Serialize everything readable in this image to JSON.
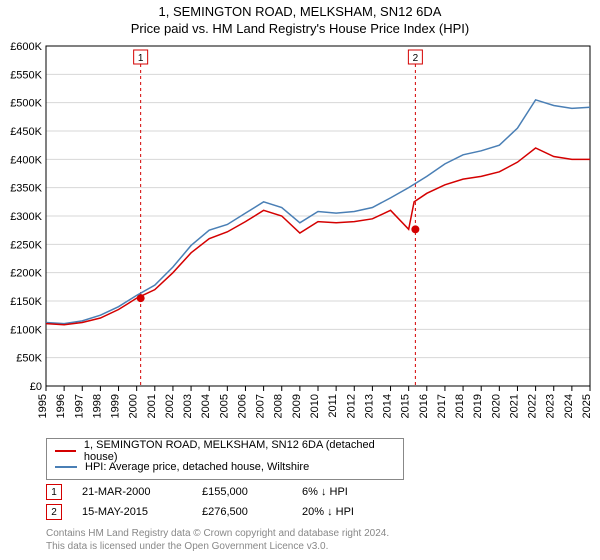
{
  "title_line1": "1, SEMINGTON ROAD, MELKSHAM, SN12 6DA",
  "title_line2": "Price paid vs. HM Land Registry's House Price Index (HPI)",
  "chart": {
    "type": "line",
    "background_color": "#ffffff",
    "grid_color": "#d7d7d7",
    "axis_color": "#000000",
    "label_fontsize": 11,
    "title_fontsize": 13,
    "x_years": [
      1995,
      1996,
      1997,
      1998,
      1999,
      2000,
      2001,
      2002,
      2003,
      2004,
      2005,
      2006,
      2007,
      2008,
      2009,
      2010,
      2011,
      2012,
      2013,
      2014,
      2015,
      2016,
      2017,
      2018,
      2019,
      2020,
      2021,
      2022,
      2023,
      2024,
      2025
    ],
    "y_ticks": [
      0,
      50000,
      100000,
      150000,
      200000,
      250000,
      300000,
      350000,
      400000,
      450000,
      500000,
      550000,
      600000
    ],
    "y_tick_labels": [
      "£0",
      "£50K",
      "£100K",
      "£150K",
      "£200K",
      "£250K",
      "£300K",
      "£350K",
      "£400K",
      "£450K",
      "£500K",
      "£550K",
      "£600K"
    ],
    "ylim": [
      0,
      600000
    ],
    "xlim": [
      1995,
      2025
    ],
    "series_red": {
      "color": "#d40000",
      "line_width": 1.5,
      "data": [
        [
          1995,
          110000
        ],
        [
          1996,
          108000
        ],
        [
          1997,
          112000
        ],
        [
          1998,
          120000
        ],
        [
          1999,
          135000
        ],
        [
          2000,
          155000
        ],
        [
          2001,
          170000
        ],
        [
          2002,
          200000
        ],
        [
          2003,
          235000
        ],
        [
          2004,
          260000
        ],
        [
          2005,
          272000
        ],
        [
          2006,
          290000
        ],
        [
          2007,
          310000
        ],
        [
          2008,
          300000
        ],
        [
          2009,
          270000
        ],
        [
          2010,
          290000
        ],
        [
          2011,
          288000
        ],
        [
          2012,
          290000
        ],
        [
          2013,
          295000
        ],
        [
          2014,
          310000
        ],
        [
          2015,
          276500
        ],
        [
          2015.3,
          325000
        ],
        [
          2016,
          340000
        ],
        [
          2017,
          355000
        ],
        [
          2018,
          365000
        ],
        [
          2019,
          370000
        ],
        [
          2020,
          378000
        ],
        [
          2021,
          395000
        ],
        [
          2022,
          420000
        ],
        [
          2023,
          405000
        ],
        [
          2024,
          400000
        ],
        [
          2025,
          400000
        ]
      ]
    },
    "series_blue": {
      "color": "#4a7fb5",
      "line_width": 1.5,
      "data": [
        [
          1995,
          112000
        ],
        [
          1996,
          110000
        ],
        [
          1997,
          115000
        ],
        [
          1998,
          125000
        ],
        [
          1999,
          140000
        ],
        [
          2000,
          160000
        ],
        [
          2001,
          178000
        ],
        [
          2002,
          210000
        ],
        [
          2003,
          248000
        ],
        [
          2004,
          275000
        ],
        [
          2005,
          285000
        ],
        [
          2006,
          305000
        ],
        [
          2007,
          325000
        ],
        [
          2008,
          315000
        ],
        [
          2009,
          288000
        ],
        [
          2010,
          308000
        ],
        [
          2011,
          305000
        ],
        [
          2012,
          308000
        ],
        [
          2013,
          315000
        ],
        [
          2014,
          332000
        ],
        [
          2015,
          350000
        ],
        [
          2016,
          370000
        ],
        [
          2017,
          392000
        ],
        [
          2018,
          408000
        ],
        [
          2019,
          415000
        ],
        [
          2020,
          425000
        ],
        [
          2021,
          455000
        ],
        [
          2022,
          505000
        ],
        [
          2023,
          495000
        ],
        [
          2024,
          490000
        ],
        [
          2025,
          492000
        ]
      ]
    },
    "markers": [
      {
        "num": "1",
        "year": 2000.22,
        "price": 155000,
        "color": "#d40000"
      },
      {
        "num": "2",
        "year": 2015.37,
        "price": 276500,
        "color": "#d40000"
      }
    ],
    "marker_line_color": "#d40000",
    "marker_line_dash": "3,3",
    "marker_dot_fill": "#d40000",
    "marker_dot_radius": 4
  },
  "legend": {
    "border_color": "#888888",
    "items": [
      {
        "color": "#d40000",
        "label": "1, SEMINGTON ROAD, MELKSHAM, SN12 6DA (detached house)"
      },
      {
        "color": "#4a7fb5",
        "label": "HPI: Average price, detached house, Wiltshire"
      }
    ]
  },
  "marker_rows": [
    {
      "num": "1",
      "border": "#d40000",
      "date": "21-MAR-2000",
      "price": "£155,000",
      "pct": "6% ↓ HPI"
    },
    {
      "num": "2",
      "border": "#d40000",
      "date": "15-MAY-2015",
      "price": "£276,500",
      "pct": "20% ↓ HPI"
    }
  ],
  "footer_line1": "Contains HM Land Registry data © Crown copyright and database right 2024.",
  "footer_line2": "This data is licensed under the Open Government Licence v3.0."
}
